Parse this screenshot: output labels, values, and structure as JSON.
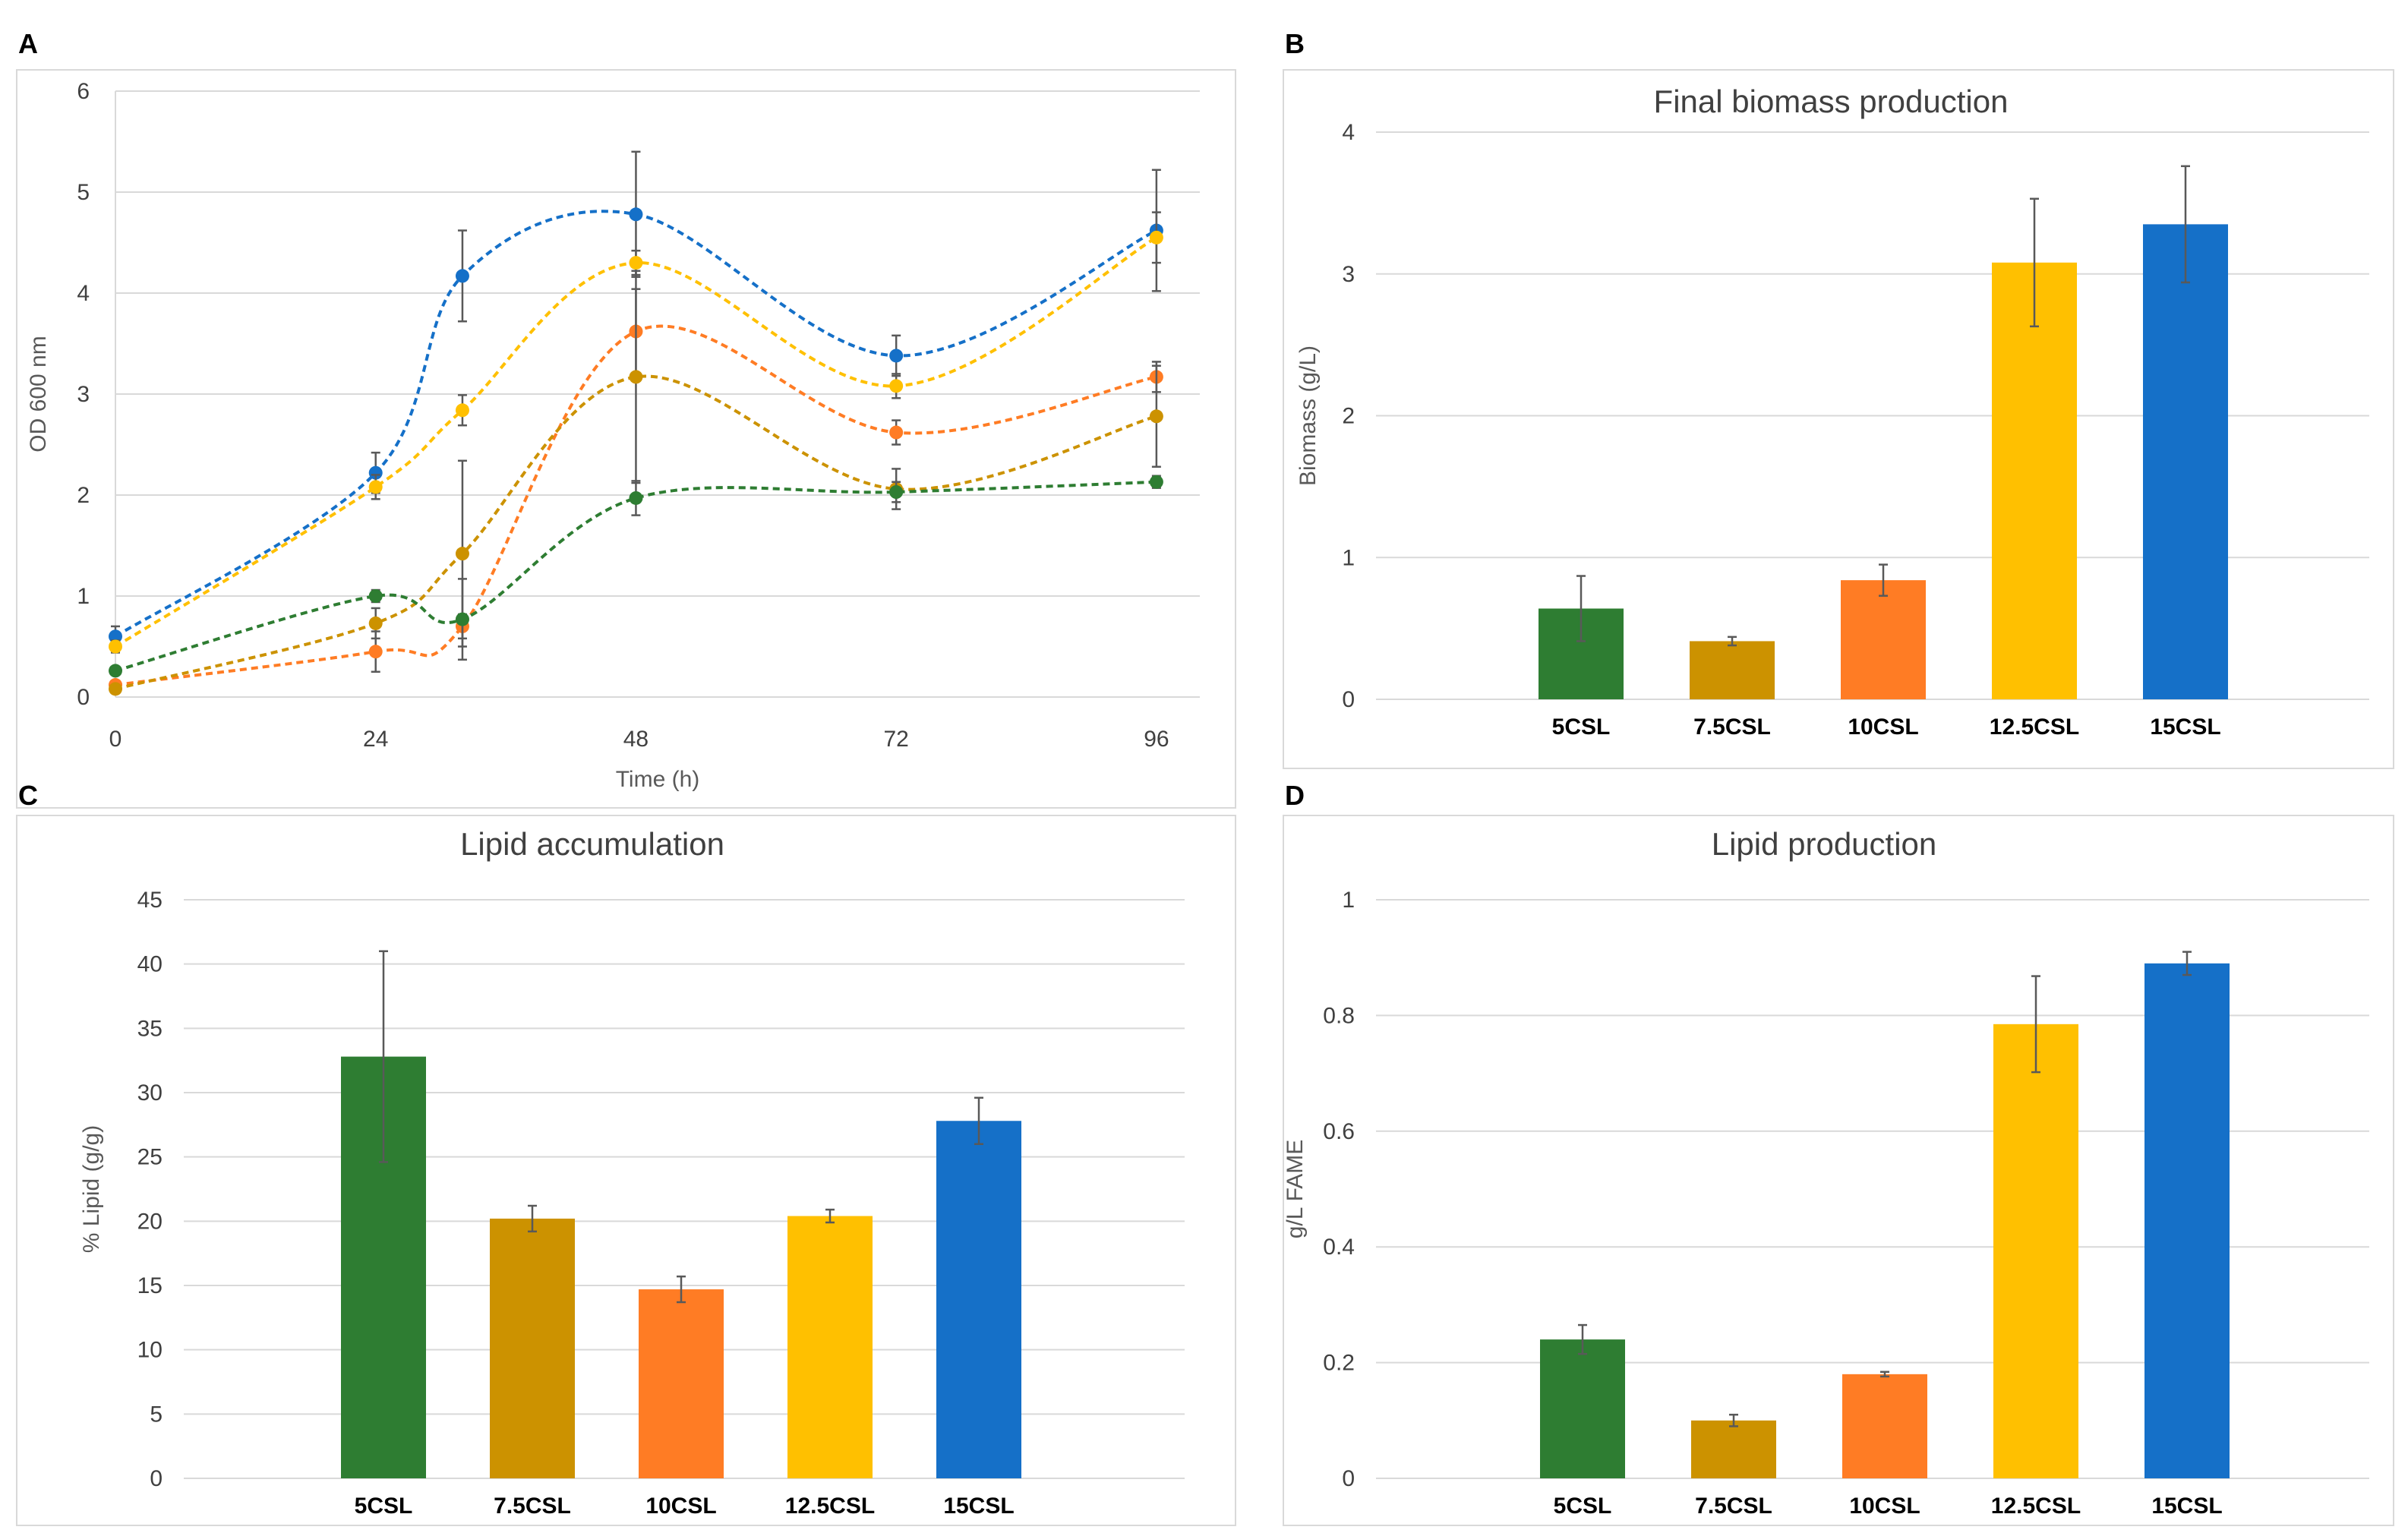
{
  "colors": {
    "5CSL": "#2e7d32",
    "7.5CSL": "#cc9200",
    "10CSL": "#ff7c24",
    "12.5CSL": "#ffc000",
    "15CSL": "#1570c8",
    "grid": "#d9d9d9"
  },
  "chart_data": [
    {
      "panel": "A",
      "type": "line",
      "title": "",
      "xlabel": "Time (h)",
      "ylabel": "OD 600 nm",
      "xlim": [
        0,
        100
      ],
      "ylim": [
        0,
        6
      ],
      "xticks": [
        0,
        24,
        48,
        72,
        96
      ],
      "yticks": [
        0,
        1,
        2,
        3,
        4,
        5,
        6
      ],
      "series": [
        {
          "name": "15CSL",
          "color": "#1570c8",
          "x": [
            0,
            24,
            32,
            48,
            72,
            96
          ],
          "y": [
            0.6,
            2.22,
            4.17,
            4.78,
            3.38,
            4.62
          ],
          "err": [
            0.1,
            0.2,
            0.45,
            0.62,
            0.2,
            0.6
          ]
        },
        {
          "name": "12.5CSL",
          "color": "#ffc000",
          "x": [
            0,
            24,
            32,
            48,
            72,
            96
          ],
          "y": [
            0.5,
            2.08,
            2.84,
            4.3,
            3.08,
            4.55
          ],
          "err": [
            0.06,
            0.12,
            0.15,
            0.12,
            0.12,
            0.25
          ]
        },
        {
          "name": "10CSL",
          "color": "#ff7c24",
          "x": [
            0,
            24,
            32,
            48,
            72,
            96
          ],
          "y": [
            0.12,
            0.45,
            0.7,
            3.62,
            2.62,
            3.17
          ],
          "err": [
            0.04,
            0.2,
            0.12,
            0.42,
            0.12,
            0.15
          ]
        },
        {
          "name": "7.5CSL",
          "color": "#cc9200",
          "x": [
            0,
            24,
            32,
            48,
            72,
            96
          ],
          "y": [
            0.08,
            0.73,
            1.42,
            3.17,
            2.06,
            2.78
          ],
          "err": [
            0.04,
            0.15,
            0.92,
            1.05,
            0.2,
            0.5
          ]
        },
        {
          "name": "5CSL",
          "color": "#2e7d32",
          "x": [
            0,
            24,
            32,
            48,
            72,
            96
          ],
          "y": [
            0.26,
            1.0,
            0.77,
            1.97,
            2.03,
            2.13
          ],
          "err": [
            0.04,
            0.06,
            0.4,
            0.17,
            0.1,
            0.06
          ]
        }
      ]
    },
    {
      "panel": "B",
      "type": "bar",
      "title": "Final biomass production",
      "xlabel": "",
      "ylabel": "Biomass (g/L)",
      "ylim": [
        0,
        4
      ],
      "yticks": [
        0,
        1,
        2,
        3,
        4
      ],
      "categories": [
        "5CSL",
        "7.5CSL",
        "10CSL",
        "12.5CSL",
        "15CSL"
      ],
      "values": [
        0.64,
        0.41,
        0.84,
        3.08,
        3.35
      ],
      "errors": [
        0.23,
        0.03,
        0.11,
        0.45,
        0.41
      ]
    },
    {
      "panel": "C",
      "type": "bar",
      "title": "Lipid accumulation",
      "xlabel": "",
      "ylabel": "% Lipid (g/g)",
      "ylim": [
        0,
        45
      ],
      "yticks": [
        0,
        5,
        10,
        15,
        20,
        25,
        30,
        35,
        40,
        45
      ],
      "categories": [
        "5CSL",
        "7.5CSL",
        "10CSL",
        "12.5CSL",
        "15CSL"
      ],
      "values": [
        32.8,
        20.2,
        14.7,
        20.4,
        27.8
      ],
      "errors": [
        8.2,
        1.0,
        1.0,
        0.5,
        1.8
      ]
    },
    {
      "panel": "D",
      "type": "bar",
      "title": "Lipid production",
      "xlabel": "",
      "ylabel": "g/L FAME",
      "ylim": [
        0,
        1
      ],
      "yticks": [
        0,
        0.2,
        0.4,
        0.6,
        0.8,
        1
      ],
      "categories": [
        "5CSL",
        "7.5CSL",
        "10CSL",
        "12.5CSL",
        "15CSL"
      ],
      "values": [
        0.24,
        0.1,
        0.18,
        0.785,
        0.89
      ],
      "errors": [
        0.025,
        0.01,
        0.004,
        0.083,
        0.02
      ]
    }
  ]
}
